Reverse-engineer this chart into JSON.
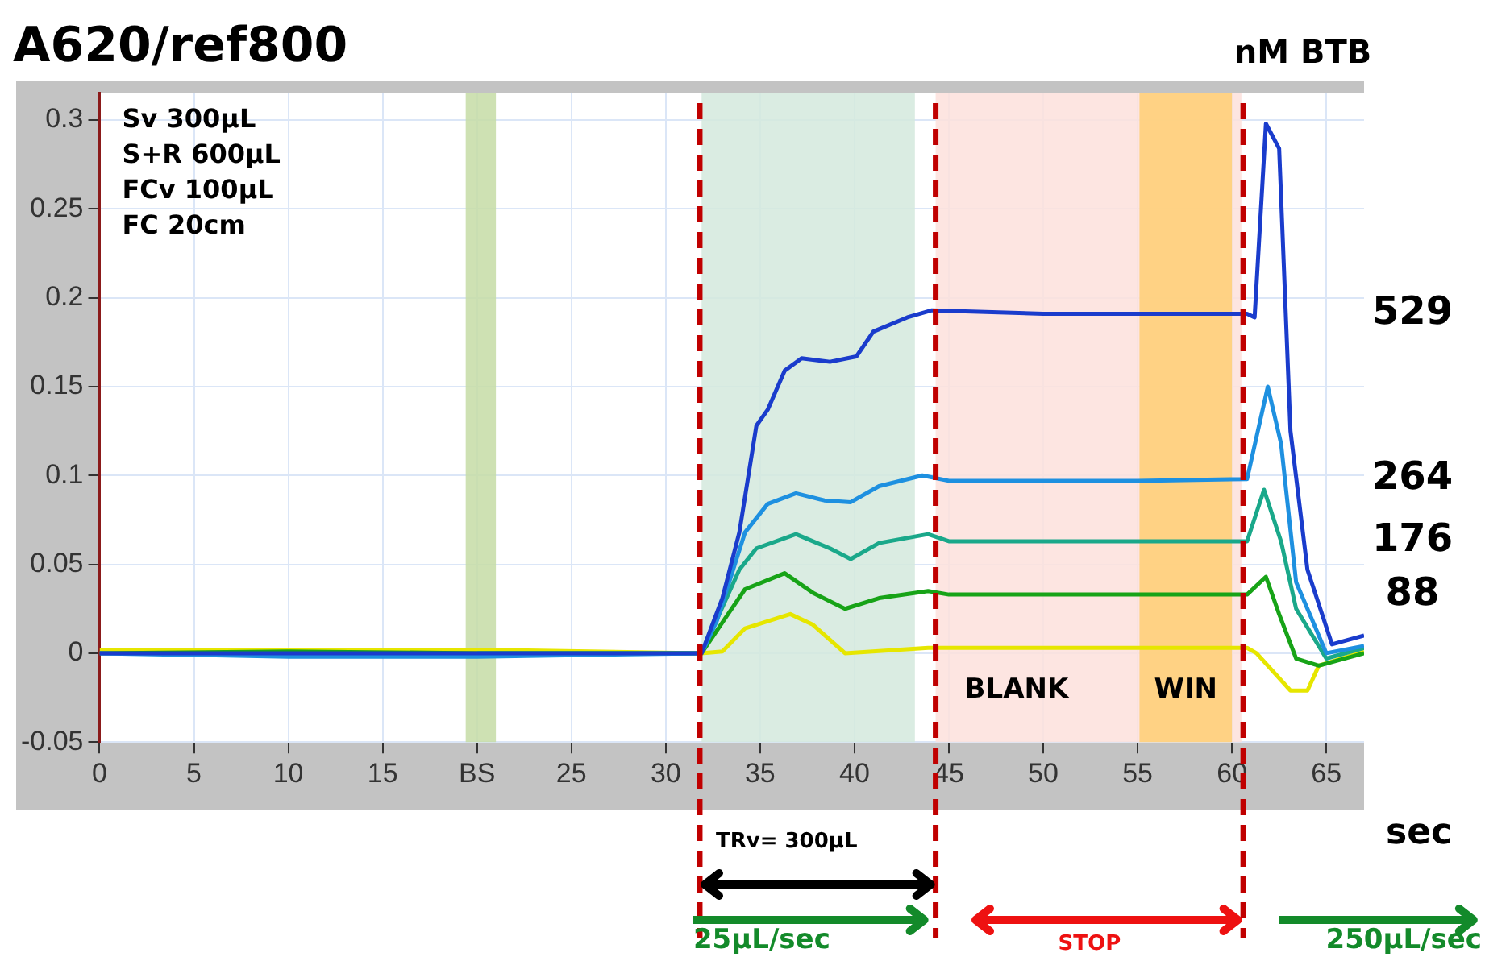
{
  "chart_data": {
    "type": "line",
    "title": "A620/ref800",
    "xlabel": "sec",
    "legend_title": "nM BTB",
    "xlim": [
      0,
      67
    ],
    "ylim": [
      -0.05,
      0.315
    ],
    "xticks": [
      0,
      5,
      10,
      15,
      {
        "value": 20,
        "label": "BS"
      },
      25,
      30,
      35,
      40,
      45,
      50,
      55,
      60,
      65
    ],
    "yticks": [
      -0.05,
      0,
      0.05,
      0.1,
      0.15,
      0.2,
      0.25,
      0.3
    ],
    "grid": true,
    "marker": "none",
    "line_style": "solid",
    "series": [
      {
        "name": "529",
        "color": "#1a3ccc",
        "x": [
          0,
          10,
          20,
          31.9,
          33,
          33.9,
          34.8,
          35.4,
          36.3,
          37.2,
          38.7,
          40.1,
          41,
          42.8,
          44.1,
          50,
          55,
          60.8,
          61.2,
          61.8,
          62.5,
          63.1,
          64,
          65.3,
          67
        ],
        "values": [
          0,
          0,
          0,
          0,
          0.031,
          0.068,
          0.128,
          0.137,
          0.159,
          0.166,
          0.164,
          0.167,
          0.181,
          0.189,
          0.193,
          0.191,
          0.191,
          0.191,
          0.189,
          0.298,
          0.284,
          0.125,
          0.047,
          0.005,
          0.01
        ]
      },
      {
        "name": "264",
        "color": "#1e90e0",
        "x": [
          0,
          10,
          20,
          31.9,
          32.7,
          34.2,
          35.4,
          36.9,
          38.4,
          39.8,
          41.3,
          43.6,
          45,
          50,
          55,
          60.8,
          61.9,
          62.6,
          63.4,
          65,
          67
        ],
        "values": [
          0,
          -0.002,
          -0.002,
          0,
          0.018,
          0.068,
          0.084,
          0.09,
          0.086,
          0.085,
          0.094,
          0.1,
          0.097,
          0.097,
          0.097,
          0.098,
          0.15,
          0.118,
          0.04,
          0,
          0.004
        ]
      },
      {
        "name": "176",
        "color": "#1aa88a",
        "x": [
          20,
          31.9,
          33.9,
          34.8,
          36.9,
          38.7,
          39.8,
          41.3,
          43.9,
          45,
          50,
          55,
          60.8,
          61.7,
          62.6,
          63.4,
          65,
          67
        ],
        "values": [
          0,
          0,
          0.047,
          0.059,
          0.067,
          0.059,
          0.053,
          0.062,
          0.067,
          0.063,
          0.063,
          0.063,
          0.063,
          0.092,
          0.063,
          0.025,
          -0.003,
          0.003
        ]
      },
      {
        "name": "88",
        "color": "#17a317",
        "x": [
          0,
          10,
          20,
          31.9,
          33.3,
          34.2,
          36.3,
          37.8,
          39.5,
          41.3,
          43.9,
          45,
          50,
          55,
          60.8,
          61.8,
          62.5,
          63.4,
          64.6,
          67
        ],
        "values": [
          0,
          0.001,
          0,
          0,
          0.022,
          0.036,
          0.045,
          0.034,
          0.025,
          0.031,
          0.035,
          0.033,
          0.033,
          0.033,
          0.033,
          0.043,
          0.022,
          -0.003,
          -0.007,
          0
        ]
      },
      {
        "color": "#e6e600",
        "x": [
          0,
          10,
          20,
          31.9,
          33,
          34.2,
          36.6,
          37.8,
          39.5,
          43.9,
          50,
          55,
          60.8,
          61.3,
          63.1,
          64,
          64.6,
          67
        ],
        "values": [
          0.002,
          0.002,
          0.002,
          0,
          0.001,
          0.014,
          0.022,
          0.016,
          0,
          0.003,
          0.003,
          0.003,
          0.003,
          0,
          -0.021,
          -0.021,
          -0.007,
          0.001
        ]
      }
    ],
    "bands": [
      {
        "axis": "x",
        "from": 19.4,
        "to": 21,
        "color": "#c5dca6"
      },
      {
        "axis": "x",
        "from": 31.9,
        "to": 43.2,
        "color": "#d3e9dd"
      },
      {
        "axis": "x",
        "from": 44.3,
        "to": 60.5,
        "label": "BLANK",
        "color": "#fde0dc"
      },
      {
        "axis": "x",
        "from": 55.1,
        "to": 60,
        "label": "WIN",
        "color": "#ffcf73"
      }
    ],
    "ref_lines": [
      {
        "axis": "x",
        "value": 31.8,
        "color": "#c00000",
        "line_style": "dashed"
      },
      {
        "axis": "x",
        "value": 44.3,
        "color": "#c00000",
        "line_style": "dashed"
      },
      {
        "axis": "x",
        "value": 60.6,
        "color": "#c00000",
        "line_style": "dashed"
      }
    ],
    "annotations": [
      "Sv 300µL",
      "S+R 600µL",
      "FCv 100µL",
      "FC 20cm",
      "TRv= 300µL",
      "25µL/sec",
      "STOP",
      "250µL/sec"
    ]
  }
}
